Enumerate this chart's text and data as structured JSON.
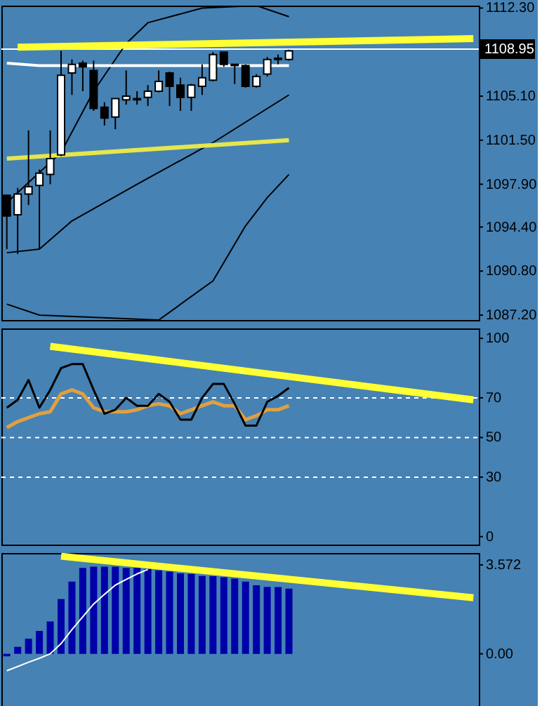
{
  "chart_data": [
    {
      "type": "candlestick",
      "categories": [
        null,
        null,
        null,
        null,
        null,
        null,
        null,
        null,
        null,
        null,
        null,
        null,
        null,
        null,
        null,
        null,
        null,
        null,
        null,
        null,
        null,
        null,
        null,
        null,
        null,
        null,
        null,
        null,
        null,
        null,
        null,
        null,
        null,
        null,
        null,
        null,
        null,
        null,
        null,
        null,
        null,
        null,
        null,
        null
      ],
      "ohlc": [
        [
          1097.0,
          1097.0,
          1092.6,
          1095.3
        ],
        [
          1095.4,
          1097.6,
          1092.2,
          1097.1
        ],
        [
          1097.1,
          1102.3,
          1096.2,
          1097.7
        ],
        [
          1097.8,
          1099.1,
          1092.6,
          1098.8
        ],
        [
          1098.7,
          1102.3,
          1097.9,
          1100.0
        ],
        [
          1100.3,
          1108.8,
          1100.2,
          1106.8
        ],
        [
          1107.0,
          1108.1,
          1105.2,
          1107.7
        ],
        [
          1107.8,
          1108.0,
          1105.5,
          1107.5
        ],
        [
          1107.2,
          1108.0,
          1103.9,
          1104.1
        ],
        [
          1104.2,
          1104.6,
          1102.7,
          1103.3
        ],
        [
          1103.4,
          1104.9,
          1102.4,
          1104.9
        ],
        [
          1104.8,
          1107.2,
          1104.4,
          1105.1
        ],
        [
          1104.8,
          1105.5,
          1104.4,
          1104.9
        ],
        [
          1105.0,
          1106.0,
          1104.3,
          1105.5
        ],
        [
          1105.5,
          1107.2,
          1105.4,
          1106.3
        ],
        [
          1107.0,
          1107.1,
          1104.3,
          1105.9
        ],
        [
          1106.0,
          1106.6,
          1103.9,
          1105.0
        ],
        [
          1105.0,
          1106.1,
          1103.9,
          1106.0
        ],
        [
          1105.9,
          1107.7,
          1105.2,
          1106.6
        ],
        [
          1106.4,
          1108.7,
          1106.3,
          1108.5
        ],
        [
          1108.7,
          1108.7,
          1107.5,
          1107.7
        ],
        [
          1107.6,
          1107.7,
          1106.1,
          1107.7
        ],
        [
          1107.6,
          1107.7,
          1105.8,
          1105.9
        ],
        [
          1105.9,
          1106.9,
          1105.8,
          1106.7
        ],
        [
          1106.9,
          1108.3,
          1106.7,
          1108.1
        ],
        [
          1108.1,
          1108.5,
          1107.7,
          1108.2
        ],
        [
          1108.1,
          1108.9,
          1108.0,
          1108.8
        ],
        null,
        null,
        null,
        null,
        null,
        null,
        null,
        null,
        null,
        null,
        null,
        null,
        null,
        null,
        null,
        null,
        null
      ],
      "series": [
        {
          "type": "line",
          "color": "#000000",
          "values": [
            1096.4,
            null,
            null,
            null,
            null,
            1100.5,
            null,
            null,
            1105.5,
            null,
            null,
            1109.4,
            null,
            1111.1,
            null,
            null,
            null,
            null,
            1112.3,
            null,
            null,
            null,
            null,
            1112.5,
            null,
            null,
            1111.6,
            null,
            null,
            null,
            null,
            null,
            null,
            null,
            null,
            null,
            null,
            null,
            null,
            null,
            null,
            null,
            null,
            null
          ]
        },
        {
          "type": "line",
          "color": "#000000",
          "values": [
            1092.3,
            null,
            null,
            1092.6,
            null,
            null,
            1094.9,
            null,
            null,
            null,
            null,
            null,
            1097.9,
            null,
            null,
            null,
            null,
            null,
            null,
            1101.3,
            null,
            null,
            null,
            null,
            null,
            null,
            1105.2,
            null,
            null,
            null,
            null,
            null,
            null,
            null,
            null,
            null,
            null,
            null,
            null,
            null,
            null,
            null,
            null,
            null
          ]
        },
        {
          "type": "line",
          "color": "#000000",
          "values": [
            1088.1,
            null,
            null,
            1087.2,
            null,
            null,
            null,
            null,
            null,
            null,
            null,
            null,
            null,
            null,
            1086.8,
            null,
            null,
            null,
            null,
            1090.0,
            null,
            null,
            1094.5,
            null,
            1096.8,
            null,
            1098.7,
            null,
            null,
            null,
            null,
            null,
            null,
            null,
            null,
            null,
            null,
            null,
            null,
            null,
            null,
            null,
            null,
            null
          ]
        },
        {
          "type": "line",
          "color": "#ffffff",
          "values": [
            1107.8,
            null,
            null,
            1107.6,
            null,
            null,
            null,
            null,
            null,
            null,
            null,
            null,
            null,
            null,
            null,
            null,
            null,
            null,
            null,
            null,
            null,
            null,
            null,
            null,
            null,
            null,
            1107.6,
            null,
            null,
            null,
            null,
            null,
            null,
            null,
            null,
            null,
            null,
            null,
            null,
            null,
            null,
            null,
            null,
            null
          ]
        },
        {
          "type": "line",
          "color": "#ffff33",
          "values": [
            null,
            1109.1,
            null,
            null,
            null,
            null,
            null,
            null,
            null,
            null,
            null,
            null,
            null,
            null,
            null,
            null,
            null,
            null,
            null,
            null,
            null,
            null,
            null,
            null,
            null,
            null,
            null,
            null,
            null,
            null,
            null,
            null,
            null,
            null,
            null,
            null,
            null,
            null,
            null,
            null,
            null,
            null,
            null,
            1109.8
          ]
        },
        {
          "type": "line",
          "color": "#e6e64d",
          "values": [
            1100.0,
            null,
            null,
            null,
            null,
            null,
            null,
            null,
            null,
            null,
            null,
            null,
            null,
            null,
            null,
            null,
            null,
            null,
            null,
            null,
            null,
            null,
            null,
            null,
            null,
            null,
            1101.5,
            null,
            null,
            null,
            null,
            null,
            null,
            null,
            null,
            null,
            null,
            null,
            null,
            null,
            null,
            null,
            null,
            null
          ]
        }
      ],
      "ylim": [
        1086.8,
        1112.5
      ],
      "yticks": [
        {
          "value": 1112.3,
          "label": "1112.30"
        },
        {
          "value": 1105.1,
          "label": "1105.10"
        },
        {
          "value": 1101.5,
          "label": "1101.50"
        },
        {
          "value": 1097.9,
          "label": "1097.90"
        },
        {
          "value": 1094.4,
          "label": "1094.40"
        },
        {
          "value": 1090.8,
          "label": "1090.80"
        },
        {
          "value": 1087.2,
          "label": "1087.20"
        }
      ],
      "ref_lines": [
        {
          "axis": "y",
          "value": 1108.95,
          "label": "1108.95",
          "color": "#ffffff",
          "line_style": "solid"
        }
      ],
      "tick_labels": "y",
      "grid": false
    },
    {
      "type": "line",
      "categories": [
        null,
        null,
        null,
        null,
        null,
        null,
        null,
        null,
        null,
        null,
        null,
        null,
        null,
        null,
        null,
        null,
        null,
        null,
        null,
        null,
        null,
        null,
        null,
        null,
        null,
        null,
        null,
        null,
        null,
        null,
        null,
        null,
        null,
        null,
        null,
        null,
        null,
        null,
        null,
        null,
        null,
        null,
        null,
        null
      ],
      "series": [
        {
          "color": "#e0a040",
          "values": [
            55,
            58,
            60,
            62,
            63,
            72,
            74,
            72,
            65,
            63,
            63,
            63,
            64,
            66,
            67,
            66,
            62,
            64,
            66,
            68,
            66,
            66,
            59,
            61,
            64,
            64,
            66,
            null,
            null,
            null,
            null,
            null,
            null,
            null,
            null,
            null,
            null,
            null,
            null,
            null,
            null,
            null,
            null,
            null
          ]
        },
        {
          "color": "#000000",
          "values": [
            65,
            69,
            79,
            65,
            74,
            85,
            87,
            87,
            74,
            62,
            64,
            70,
            66,
            66,
            72,
            68,
            59,
            59,
            70,
            77,
            77,
            67,
            56,
            56,
            68,
            71,
            75,
            null,
            null,
            null,
            null,
            null,
            null,
            null,
            null,
            null,
            null,
            null,
            null,
            null,
            null,
            null,
            null,
            null
          ]
        },
        {
          "color": "#ffff33",
          "values": [
            null,
            null,
            null,
            null,
            96,
            null,
            null,
            null,
            null,
            null,
            null,
            null,
            null,
            null,
            null,
            null,
            null,
            null,
            null,
            null,
            null,
            null,
            null,
            null,
            null,
            null,
            null,
            null,
            null,
            null,
            null,
            null,
            null,
            null,
            null,
            null,
            null,
            null,
            null,
            null,
            null,
            null,
            null,
            69
          ]
        }
      ],
      "ylim": [
        -4,
        105
      ],
      "yticks": [
        0,
        30,
        50,
        70,
        100
      ],
      "ref_lines": [
        {
          "axis": "y",
          "value": 70,
          "color": "#ffffff",
          "line_style": "dashed"
        },
        {
          "axis": "y",
          "value": 50,
          "color": "#ffffff",
          "line_style": "dashed"
        },
        {
          "axis": "y",
          "value": 30,
          "color": "#ffffff",
          "line_style": "dashed"
        }
      ],
      "tick_labels": "y",
      "grid": false
    },
    {
      "type": "bar",
      "categories": [
        null,
        null,
        null,
        null,
        null,
        null,
        null,
        null,
        null,
        null,
        null,
        null,
        null,
        null,
        null,
        null,
        null,
        null,
        null,
        null,
        null,
        null,
        null,
        null,
        null,
        null,
        null,
        null,
        null,
        null,
        null,
        null,
        null,
        null,
        null,
        null,
        null,
        null,
        null,
        null,
        null,
        null,
        null,
        null
      ],
      "series": [
        {
          "type": "bar",
          "color": "#0000a8",
          "values": [
            -0.1,
            0.28,
            0.61,
            0.92,
            1.3,
            2.2,
            2.9,
            3.45,
            3.5,
            3.5,
            3.5,
            3.45,
            3.45,
            3.41,
            3.35,
            3.3,
            3.23,
            3.21,
            3.13,
            3.12,
            3.08,
            3.02,
            2.9,
            2.75,
            2.69,
            2.68,
            2.62,
            null,
            null,
            null,
            null,
            null,
            null,
            null,
            null,
            null,
            null,
            null,
            null,
            null,
            null,
            null,
            null,
            null
          ]
        },
        {
          "type": "line",
          "color": "#ffffff",
          "values": [
            -0.68,
            -0.51,
            -0.34,
            -0.18,
            0.0,
            0.41,
            0.97,
            1.49,
            2.0,
            2.39,
            2.76,
            2.99,
            3.21,
            3.39,
            null,
            null,
            null,
            null,
            null,
            null,
            null,
            null,
            null,
            null,
            null,
            null,
            null,
            null,
            null,
            null,
            null,
            null,
            null,
            null,
            null,
            null,
            null,
            null,
            null,
            null,
            null,
            null,
            null,
            null
          ]
        },
        {
          "type": "line",
          "color": "#ffff33",
          "values": [
            null,
            null,
            null,
            null,
            null,
            3.92,
            null,
            null,
            null,
            null,
            null,
            null,
            null,
            null,
            null,
            null,
            null,
            null,
            null,
            null,
            null,
            null,
            null,
            null,
            null,
            null,
            null,
            null,
            null,
            null,
            null,
            null,
            null,
            null,
            null,
            null,
            null,
            null,
            null,
            null,
            null,
            null,
            null,
            2.25
          ]
        }
      ],
      "ylim": [
        -2.21,
        4.05
      ],
      "yticks": [
        {
          "value": 3.572,
          "label": "3.572"
        },
        {
          "value": 0,
          "label": "0.00"
        }
      ],
      "tick_labels": "y",
      "grid": false
    }
  ]
}
